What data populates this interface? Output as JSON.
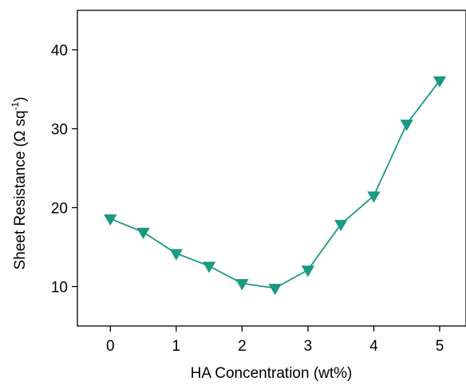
{
  "chart_data": {
    "type": "line",
    "xlabel": "HA Concentration (wt%)",
    "ylabel_main": "Sheet Resistance (Ω sq",
    "ylabel_sup": "-1",
    "ylabel_close": ")",
    "xlim": [
      -0.5,
      5.4
    ],
    "ylim": [
      5,
      45
    ],
    "xticks": [
      0,
      1,
      2,
      3,
      4,
      5
    ],
    "xtick_labels": [
      "0",
      "1",
      "2",
      "3",
      "4",
      "5"
    ],
    "yticks": [
      10,
      20,
      30,
      40
    ],
    "ytick_labels": [
      "10",
      "20",
      "30",
      "40"
    ],
    "grid": false,
    "marker": "triangle-down",
    "color": "#1a9a80",
    "series": [
      {
        "x": [
          0,
          0.5,
          1,
          1.5,
          2,
          2.5,
          3,
          3.5,
          4,
          4.5,
          5
        ],
        "y": [
          18.6,
          16.9,
          14.2,
          12.6,
          10.4,
          9.8,
          12.1,
          17.9,
          21.5,
          30.6,
          36.1
        ]
      }
    ]
  }
}
